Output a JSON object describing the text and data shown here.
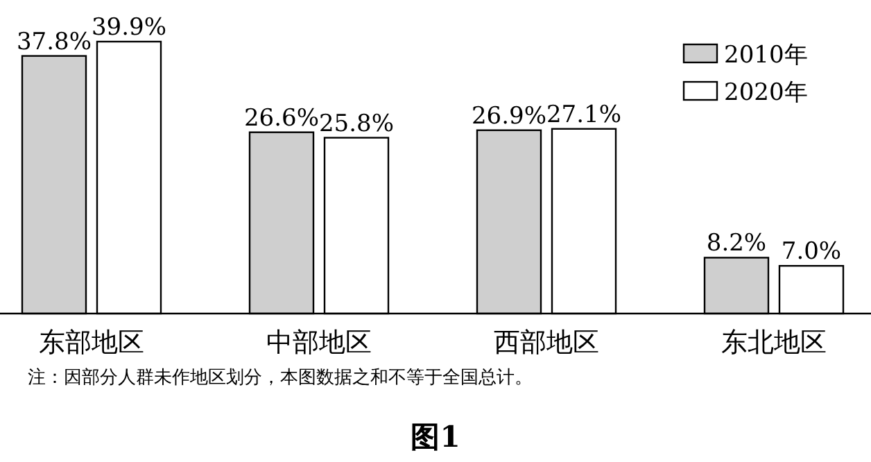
{
  "chart_data": {
    "type": "bar",
    "title": "图1",
    "categories": [
      "东部地区",
      "中部地区",
      "西部地区",
      "东北地区"
    ],
    "series": [
      {
        "name": "2010年",
        "color": "#cfcfcf",
        "values": [
          37.8,
          26.6,
          26.9,
          8.2
        ],
        "value_labels": [
          "37.8%",
          "26.6%",
          "26.9%",
          "8.2%"
        ]
      },
      {
        "name": "2020年",
        "color": "#ffffff",
        "values": [
          39.9,
          25.8,
          27.1,
          7.0
        ],
        "value_labels": [
          "39.9%",
          "25.8%",
          "27.1%",
          "7.0%"
        ]
      }
    ],
    "annotations": [
      "注：因部分人群未作地区划分，本图数据之和不等于全国总计。"
    ],
    "legend": "top right"
  }
}
